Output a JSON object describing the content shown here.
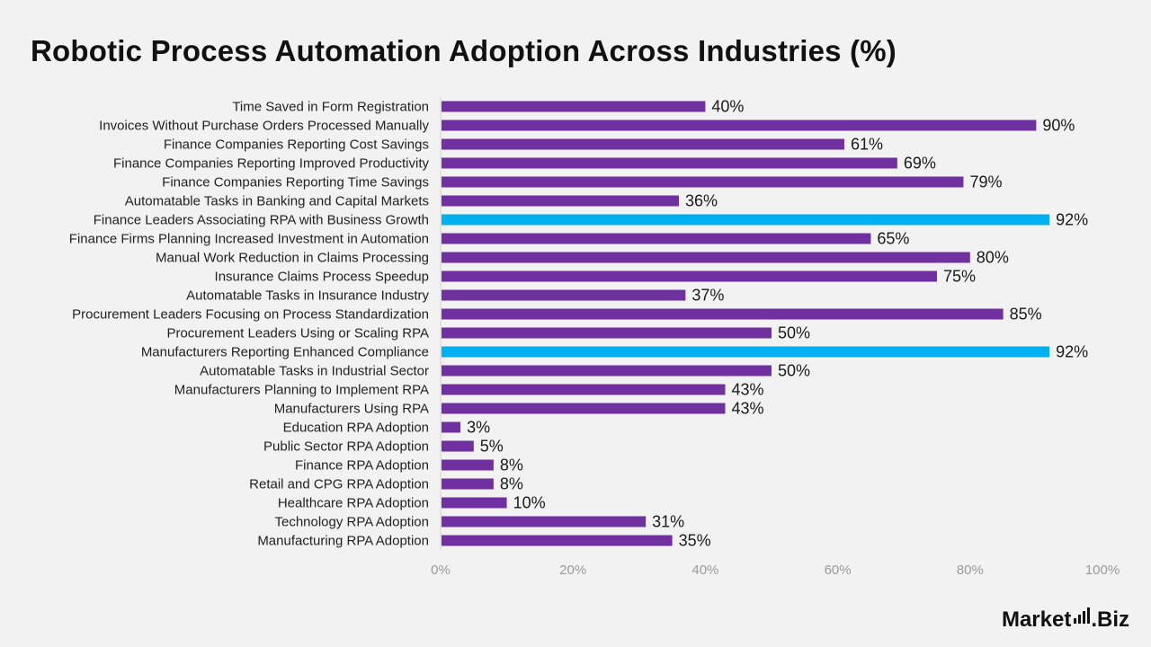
{
  "title": "Robotic Process Automation Adoption Across Industries (%)",
  "brand": {
    "name_left": "Market",
    "name_right": ".Biz"
  },
  "colors": {
    "default_bar": "#7030a0",
    "highlight_bar": "#00b0f0",
    "background": "#f2f2f2"
  },
  "chart_data": {
    "type": "bar",
    "orientation": "horizontal",
    "title": "Robotic Process Automation Adoption Across Industries (%)",
    "xlim": [
      0,
      100
    ],
    "x_ticks": [
      "0%",
      "20%",
      "40%",
      "60%",
      "80%",
      "100%"
    ],
    "grid": false,
    "legend": "none",
    "categories": [
      "Time Saved in Form Registration",
      "Invoices Without Purchase Orders Processed Manually",
      "Finance Companies Reporting Cost Savings",
      "Finance Companies Reporting Improved Productivity",
      "Finance Companies Reporting Time Savings",
      "Automatable Tasks in Banking and Capital Markets",
      "Finance Leaders Associating RPA with Business Growth",
      "Finance Firms Planning Increased Investment in Automation",
      "Manual Work Reduction in Claims Processing",
      "Insurance Claims Process Speedup",
      "Automatable Tasks in Insurance Industry",
      "Procurement Leaders Focusing on Process Standardization",
      "Procurement Leaders Using or Scaling RPA",
      "Manufacturers Reporting Enhanced Compliance",
      "Automatable Tasks in Industrial Sector",
      "Manufacturers Planning to Implement RPA",
      "Manufacturers Using RPA",
      "Education RPA Adoption",
      "Public Sector RPA Adoption",
      "Finance RPA Adoption",
      "Retail and CPG RPA Adoption",
      "Healthcare RPA Adoption",
      "Technology RPA Adoption",
      "Manufacturing RPA Adoption"
    ],
    "values": [
      40,
      90,
      61,
      69,
      79,
      36,
      92,
      65,
      80,
      75,
      37,
      85,
      50,
      92,
      50,
      43,
      43,
      3,
      5,
      8,
      8,
      10,
      31,
      35
    ],
    "value_labels": [
      "40%",
      "90%",
      "61%",
      "69%",
      "79%",
      "36%",
      "92%",
      "65%",
      "80%",
      "75%",
      "37%",
      "85%",
      "50%",
      "92%",
      "50%",
      "43%",
      "43%",
      "3%",
      "5%",
      "8%",
      "8%",
      "10%",
      "31%",
      "35%"
    ],
    "highlighted": [
      6,
      13
    ]
  }
}
